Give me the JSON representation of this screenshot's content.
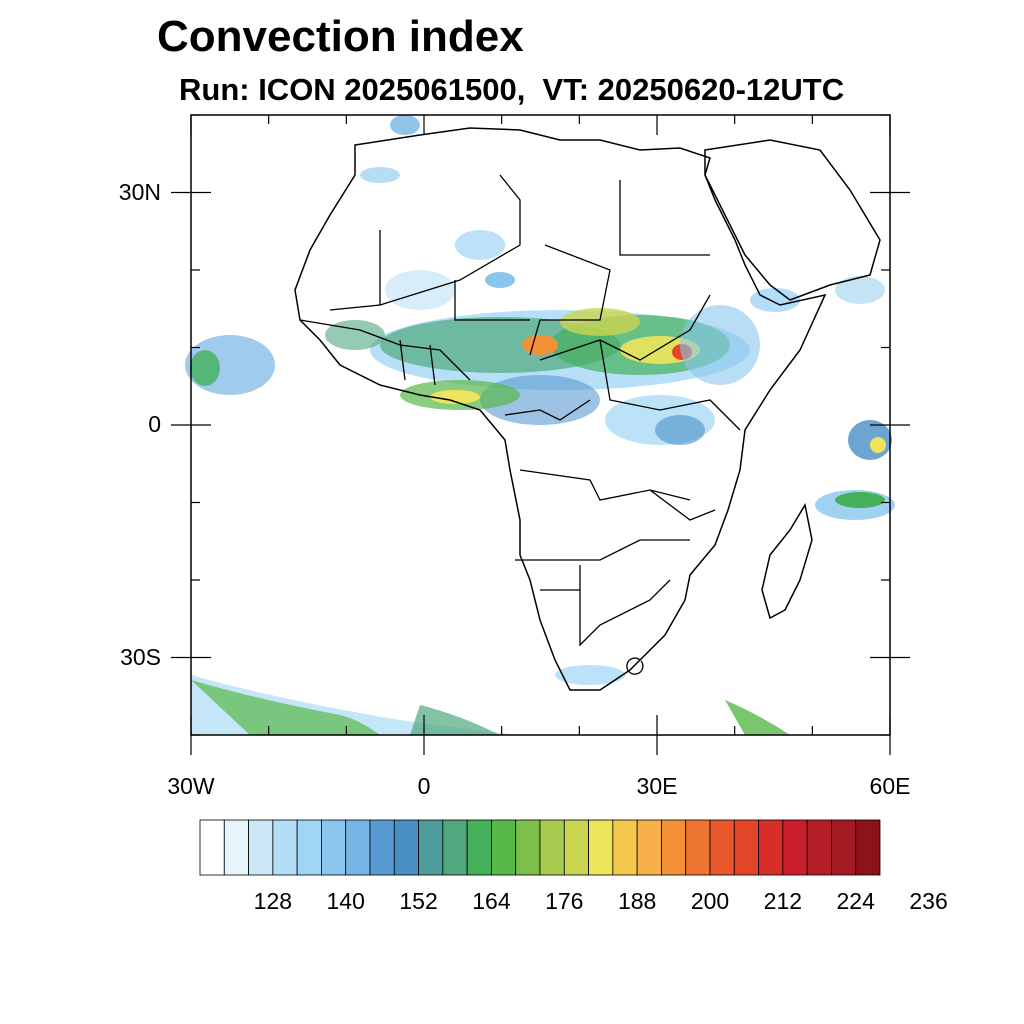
{
  "title": "Convection index",
  "subtitle": "Run: ICON 2025061500,  VT: 20250620-12UTC",
  "map": {
    "region": "Africa",
    "lon_range": [
      -30,
      60
    ],
    "lat_range": [
      -40,
      40
    ],
    "lat_ticks": [
      {
        "value": 30,
        "label": "30N"
      },
      {
        "value": 0,
        "label": "0"
      },
      {
        "value": -30,
        "label": "30S"
      }
    ],
    "lon_ticks": [
      {
        "value": -30,
        "label": "30W"
      },
      {
        "value": 0,
        "label": "0"
      },
      {
        "value": 30,
        "label": "30E"
      },
      {
        "value": 60,
        "label": "60E"
      }
    ]
  },
  "colorbar": {
    "colors": [
      "#ffffff",
      "#e8f4fc",
      "#cde8f7",
      "#b5ddf4",
      "#9fd6f5",
      "#8ac6ee",
      "#77b5e4",
      "#5a9ad2",
      "#4a8fc4",
      "#4f9c9c",
      "#4fa87e",
      "#44b05a",
      "#58b84a",
      "#7cbf4a",
      "#a6cb4e",
      "#c9d551",
      "#ede45b",
      "#f6c94e",
      "#f8b04a",
      "#f39138",
      "#ee7531",
      "#e8582b",
      "#e24528",
      "#d92d2a",
      "#c91f2a",
      "#b61d28",
      "#a31a22",
      "#8c1418"
    ],
    "labels": [
      "128",
      "140",
      "152",
      "164",
      "176",
      "188",
      "200",
      "212",
      "224",
      "236"
    ]
  }
}
